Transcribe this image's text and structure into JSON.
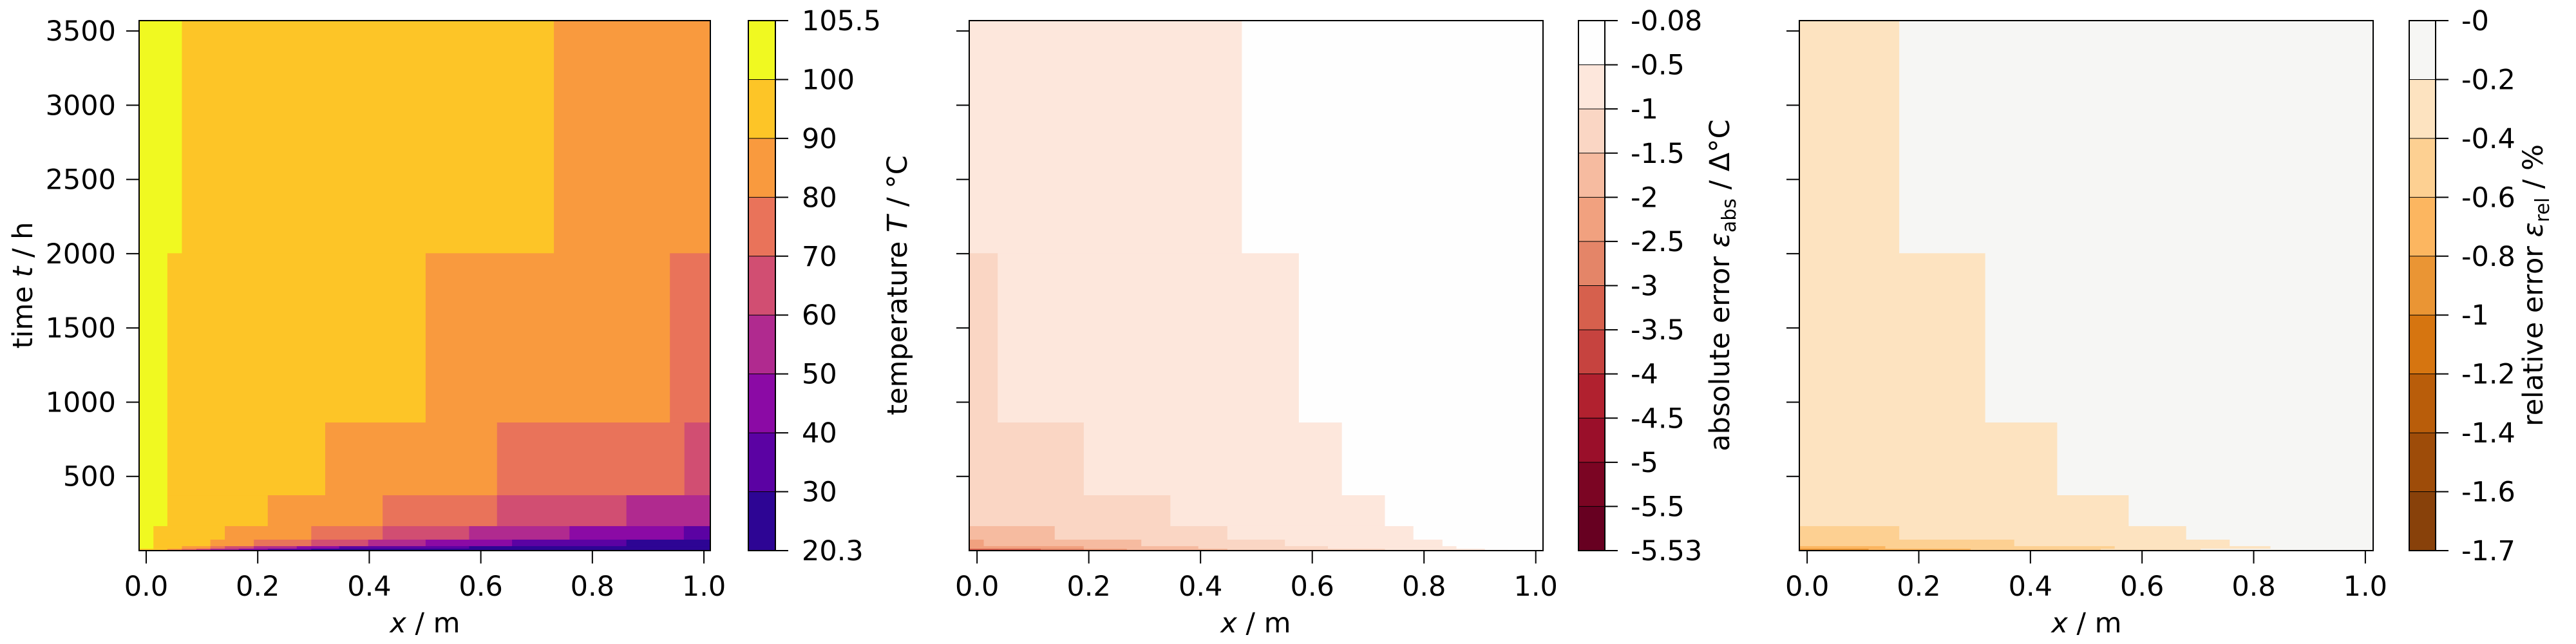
{
  "figure": {
    "panel1": {
      "ylabel_pre": "time ",
      "ylabel_var": "t",
      "ylabel_post": " / h",
      "xlabel_var": "x",
      "xlabel_post": " / m",
      "cbar_label_pre": "temperature ",
      "cbar_label_var": "T",
      "cbar_label_post": " / °C"
    },
    "panel2": {
      "xlabel_var": "x",
      "xlabel_post": " / m",
      "cbar_label_pre": "absolute error ",
      "cbar_label_var": "ε",
      "cbar_label_sub": "abs",
      "cbar_label_post": " / Δ°C"
    },
    "panel3": {
      "xlabel_var": "x",
      "xlabel_post": " / m",
      "cbar_label_pre": "relative error ",
      "cbar_label_var": "ε",
      "cbar_label_sub": "rel",
      "cbar_label_post": " / %"
    }
  },
  "chart_data": [
    {
      "type": "heatmap",
      "title": "",
      "xlabel": "x / m",
      "ylabel": "time t / h",
      "xlim": [
        -0.0127,
        1.0115
      ],
      "ylim": [
        0,
        3570
      ],
      "xticks": [
        0.0,
        0.2,
        0.4,
        0.6,
        0.8,
        1.0
      ],
      "xtick_labels": [
        "0.0",
        "0.2",
        "0.4",
        "0.6",
        "0.8",
        "1.0"
      ],
      "yticks": [
        500,
        1000,
        1500,
        2000,
        2500,
        3000,
        3500
      ],
      "ytick_labels": [
        "500",
        "1000",
        "1500",
        "2000",
        "2500",
        "3000",
        "3500"
      ],
      "colorbar": {
        "label": "temperature T / °C",
        "tick_labels": [
          "105.5",
          "100",
          "90",
          "80",
          "70",
          "60",
          "50",
          "40",
          "30",
          "20.3"
        ],
        "levels": [
          20.3,
          30,
          40,
          50,
          60,
          70,
          80,
          90,
          100,
          105.5
        ],
        "colors": [
          "#2d0594",
          "#5b02a3",
          "#8b0aa5",
          "#b02a8f",
          "#d14e72",
          "#e9735a",
          "#f99a3e",
          "#fdc527",
          "#f0f921"
        ]
      },
      "rows": [
        {
          "t0": 2003,
          "t1": 3570,
          "segments": [
            [
              0.064,
              8
            ],
            [
              0.731,
              7
            ],
            [
              1.012,
              6
            ]
          ]
        },
        {
          "t0": 863,
          "t1": 2003,
          "segments": [
            [
              0.038,
              8
            ],
            [
              0.501,
              7
            ],
            [
              0.939,
              6
            ],
            [
              1.012,
              5
            ]
          ]
        },
        {
          "t0": 373,
          "t1": 863,
          "segments": [
            [
              0.038,
              8
            ],
            [
              0.321,
              7
            ],
            [
              0.629,
              6
            ],
            [
              0.965,
              5
            ],
            [
              1.012,
              4
            ]
          ]
        },
        {
          "t0": 165,
          "t1": 373,
          "segments": [
            [
              0.038,
              8
            ],
            [
              0.218,
              7
            ],
            [
              0.424,
              6
            ],
            [
              0.629,
              5
            ],
            [
              0.861,
              4
            ],
            [
              1.012,
              3
            ]
          ]
        },
        {
          "t0": 74,
          "t1": 165,
          "segments": [
            [
              0.013,
              8
            ],
            [
              0.141,
              7
            ],
            [
              0.296,
              6
            ],
            [
              0.424,
              5
            ],
            [
              0.579,
              4
            ],
            [
              0.759,
              3
            ],
            [
              0.964,
              2
            ],
            [
              1.012,
              1
            ]
          ]
        },
        {
          "t0": 30,
          "t1": 74,
          "segments": [
            [
              0.013,
              8
            ],
            [
              0.115,
              7
            ],
            [
              0.193,
              6
            ],
            [
              0.296,
              5
            ],
            [
              0.398,
              4
            ],
            [
              0.501,
              3
            ],
            [
              0.656,
              2
            ],
            [
              0.861,
              1
            ],
            [
              1.012,
              0
            ]
          ]
        },
        {
          "t0": 13,
          "t1": 30,
          "segments": [
            [
              0.013,
              8
            ],
            [
              0.064,
              7
            ],
            [
              0.115,
              6
            ],
            [
              0.141,
              5
            ],
            [
              0.193,
              4
            ],
            [
              0.27,
              3
            ],
            [
              0.346,
              2
            ],
            [
              0.579,
              1
            ],
            [
              1.012,
              0
            ]
          ]
        },
        {
          "t0": 5,
          "t1": 13,
          "segments": [
            [
              0.038,
              7
            ],
            [
              0.064,
              6
            ],
            [
              0.09,
              5
            ],
            [
              0.115,
              4
            ],
            [
              0.166,
              3
            ],
            [
              0.218,
              2
            ],
            [
              0.296,
              1
            ],
            [
              1.012,
              0
            ]
          ]
        },
        {
          "t0": 0,
          "t1": 5,
          "segments": [
            [
              0.013,
              7
            ],
            [
              0.038,
              5
            ],
            [
              0.064,
              3
            ],
            [
              0.09,
              2
            ],
            [
              0.141,
              1
            ],
            [
              1.012,
              0
            ]
          ]
        }
      ]
    },
    {
      "type": "heatmap",
      "title": "",
      "xlabel": "x / m",
      "ylabel": "",
      "xlim": [
        -0.014,
        1.013
      ],
      "ylim": [
        0,
        3570
      ],
      "xticks": [
        0.0,
        0.2,
        0.4,
        0.6,
        0.8,
        1.0
      ],
      "xtick_labels": [
        "0.0",
        "0.2",
        "0.4",
        "0.6",
        "0.8",
        "1.0"
      ],
      "yticks": [
        500,
        1000,
        1500,
        2000,
        2500,
        3000,
        3500
      ],
      "ytick_labels": [],
      "colorbar": {
        "label": "absolute error ε_abs / Δ°C",
        "tick_labels": [
          "-0.08",
          "-0.5",
          "-1",
          "-1.5",
          "-2",
          "-2.5",
          "-3",
          "-3.5",
          "-4",
          "-4.5",
          "-5",
          "-5.5",
          "-5.53"
        ],
        "levels": [
          -0.08,
          -0.5,
          -1,
          -1.5,
          -2,
          -2.5,
          -3,
          -3.5,
          -4,
          -4.5,
          -5,
          -5.5,
          -5.53
        ],
        "colors": [
          "#fefefe",
          "#fde7dc",
          "#fad6c4",
          "#f6bba0",
          "#f1a17f",
          "#e48568",
          "#d6604d",
          "#c6433f",
          "#b1212f",
          "#9a0f2a",
          "#7b0523",
          "#670021"
        ]
      },
      "rows": [
        {
          "t0": 2003,
          "t1": 3570,
          "segments": [
            [
              0.474,
              1
            ],
            [
              1.013,
              0
            ]
          ]
        },
        {
          "t0": 863,
          "t1": 2003,
          "segments": [
            [
              0.037,
              2
            ],
            [
              0.576,
              1
            ],
            [
              1.013,
              0
            ]
          ]
        },
        {
          "t0": 373,
          "t1": 863,
          "segments": [
            [
              0.191,
              2
            ],
            [
              0.653,
              1
            ],
            [
              1.013,
              0
            ]
          ]
        },
        {
          "t0": 165,
          "t1": 373,
          "segments": [
            [
              0.346,
              2
            ],
            [
              0.73,
              1
            ],
            [
              1.013,
              0
            ]
          ]
        },
        {
          "t0": 74,
          "t1": 165,
          "segments": [
            [
              0.139,
              3
            ],
            [
              0.448,
              2
            ],
            [
              0.781,
              1
            ],
            [
              1.013,
              0
            ]
          ]
        },
        {
          "t0": 30,
          "t1": 74,
          "segments": [
            [
              0.012,
              4
            ],
            [
              0.294,
              3
            ],
            [
              0.551,
              2
            ],
            [
              0.833,
              1
            ],
            [
              1.013,
              0
            ]
          ]
        },
        {
          "t0": 13,
          "t1": 30,
          "segments": [
            [
              0.191,
              4
            ],
            [
              0.396,
              3
            ],
            [
              0.628,
              2
            ],
            [
              0.858,
              1
            ],
            [
              1.013,
              0
            ]
          ]
        },
        {
          "t0": 5,
          "t1": 13,
          "segments": [
            [
              0.114,
              6
            ],
            [
              0.191,
              5
            ],
            [
              0.268,
              4
            ],
            [
              0.448,
              3
            ],
            [
              0.73,
              2
            ],
            [
              0.909,
              1
            ],
            [
              1.013,
              0
            ]
          ]
        },
        {
          "t0": 0,
          "t1": 5,
          "segments": [
            [
              0.037,
              8
            ],
            [
              0.114,
              7
            ],
            [
              0.268,
              6
            ],
            [
              0.396,
              5
            ],
            [
              0.551,
              4
            ],
            [
              0.73,
              3
            ],
            [
              0.858,
              2
            ],
            [
              0.95,
              1
            ],
            [
              1.013,
              0
            ]
          ]
        }
      ]
    },
    {
      "type": "heatmap",
      "title": "",
      "xlabel": "x / m",
      "ylabel": "",
      "xlim": [
        -0.014,
        1.014
      ],
      "ylim": [
        0,
        3570
      ],
      "xticks": [
        0.0,
        0.2,
        0.4,
        0.6,
        0.8,
        1.0
      ],
      "xtick_labels": [
        "0.0",
        "0.2",
        "0.4",
        "0.6",
        "0.8",
        "1.0"
      ],
      "yticks": [
        500,
        1000,
        1500,
        2000,
        2500,
        3000,
        3500
      ],
      "ytick_labels": [],
      "colorbar": {
        "label": "relative error ε_rel / %",
        "tick_labels": [
          "-0",
          "-0.2",
          "-0.4",
          "-0.6",
          "-0.8",
          "-1",
          "-1.2",
          "-1.4",
          "-1.6",
          "-1.7"
        ],
        "levels": [
          0,
          -0.2,
          -0.4,
          -0.6,
          -0.8,
          -1,
          -1.2,
          -1.4,
          -1.6,
          -1.7
        ],
        "colors": [
          "#f6f6f4",
          "#fde3c0",
          "#fdd092",
          "#fcb660",
          "#ea9534",
          "#d67510",
          "#b95d0a",
          "#9e4c09",
          "#88410a"
        ]
      },
      "rows": [
        {
          "t0": 2003,
          "t1": 3570,
          "segments": [
            [
              0.165,
              1
            ],
            [
              1.014,
              0
            ]
          ]
        },
        {
          "t0": 863,
          "t1": 2003,
          "segments": [
            [
              0.319,
              1
            ],
            [
              1.014,
              0
            ]
          ]
        },
        {
          "t0": 373,
          "t1": 863,
          "segments": [
            [
              0.448,
              1
            ],
            [
              1.014,
              0
            ]
          ]
        },
        {
          "t0": 165,
          "t1": 373,
          "segments": [
            [
              0.576,
              1
            ],
            [
              1.014,
              0
            ]
          ]
        },
        {
          "t0": 74,
          "t1": 165,
          "segments": [
            [
              0.165,
              2
            ],
            [
              0.679,
              1
            ],
            [
              1.014,
              0
            ]
          ]
        },
        {
          "t0": 30,
          "t1": 74,
          "segments": [
            [
              0.371,
              2
            ],
            [
              0.757,
              1
            ],
            [
              1.014,
              0
            ]
          ]
        },
        {
          "t0": 13,
          "t1": 30,
          "segments": [
            [
              0.14,
              3
            ],
            [
              0.551,
              2
            ],
            [
              0.83,
              1
            ],
            [
              1.014,
              0
            ]
          ]
        },
        {
          "t0": 5,
          "t1": 13,
          "segments": [
            [
              0.11,
              4
            ],
            [
              0.293,
              3
            ],
            [
              0.526,
              2
            ],
            [
              0.705,
              1
            ],
            [
              1.014,
              0
            ]
          ]
        },
        {
          "t0": 0,
          "t1": 5,
          "segments": [
            [
              0.03,
              6
            ],
            [
              0.11,
              5
            ],
            [
              0.29,
              4
            ],
            [
              0.45,
              3
            ],
            [
              0.65,
              2
            ],
            [
              0.85,
              1
            ],
            [
              1.014,
              0
            ]
          ]
        }
      ]
    }
  ]
}
